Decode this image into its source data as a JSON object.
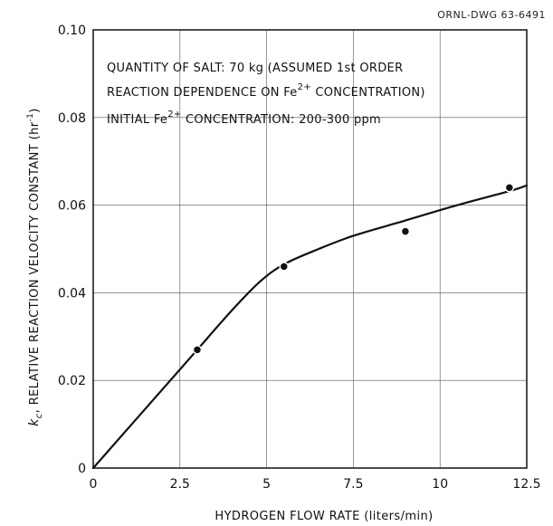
{
  "drawing_number": "ORNL-DWG 63-6491",
  "chart_data": {
    "type": "scatter",
    "xlabel": "HYDROGEN FLOW RATE (liters/min)",
    "ylabel": "kc, RELATIVE REACTION VELOCITY CONSTANT (hr-1)",
    "ylabel_parts": {
      "k": "k",
      "c": "c",
      "rest": ", RELATIVE REACTION VELOCITY CONSTANT (hr",
      "exponent": "-1",
      "close": ")"
    },
    "xlim": [
      0,
      12.5
    ],
    "ylim": [
      0,
      0.1
    ],
    "x_ticks": [
      0,
      2.5,
      5,
      7.5,
      10,
      12.5
    ],
    "x_tick_labels": [
      "0",
      "2.5",
      "5",
      "7.5",
      "10",
      "12.5"
    ],
    "y_ticks": [
      0,
      0.02,
      0.04,
      0.06,
      0.08,
      0.1
    ],
    "y_tick_labels": [
      "0",
      "0.02",
      "0.04",
      "0.06",
      "0.08",
      "0.10"
    ],
    "grid": true,
    "annotations": {
      "line1": "QUANTITY OF SALT: 70 kg (ASSUMED 1st ORDER",
      "line2_a": "REACTION DEPENDENCE ON Fe",
      "line2_sup": "2+",
      "line2_b": " CONCENTRATION)",
      "line3_a": "INITIAL Fe",
      "line3_sup": "2+",
      "line3_b": " CONCENTRATION: 200-300 ppm"
    },
    "points": [
      {
        "x": 3.0,
        "y": 0.027
      },
      {
        "x": 5.5,
        "y": 0.046
      },
      {
        "x": 9.0,
        "y": 0.054
      },
      {
        "x": 12.0,
        "y": 0.064
      }
    ],
    "curve": [
      {
        "x": 0,
        "y": 0
      },
      {
        "x": 2.5,
        "y": 0.0225
      },
      {
        "x": 3.0,
        "y": 0.027
      },
      {
        "x": 4.0,
        "y": 0.036
      },
      {
        "x": 4.8,
        "y": 0.0425
      },
      {
        "x": 5.5,
        "y": 0.0465
      },
      {
        "x": 6.5,
        "y": 0.05
      },
      {
        "x": 7.5,
        "y": 0.053
      },
      {
        "x": 9.0,
        "y": 0.0565
      },
      {
        "x": 10.5,
        "y": 0.06
      },
      {
        "x": 12.0,
        "y": 0.0632
      },
      {
        "x": 12.5,
        "y": 0.0645
      }
    ]
  }
}
